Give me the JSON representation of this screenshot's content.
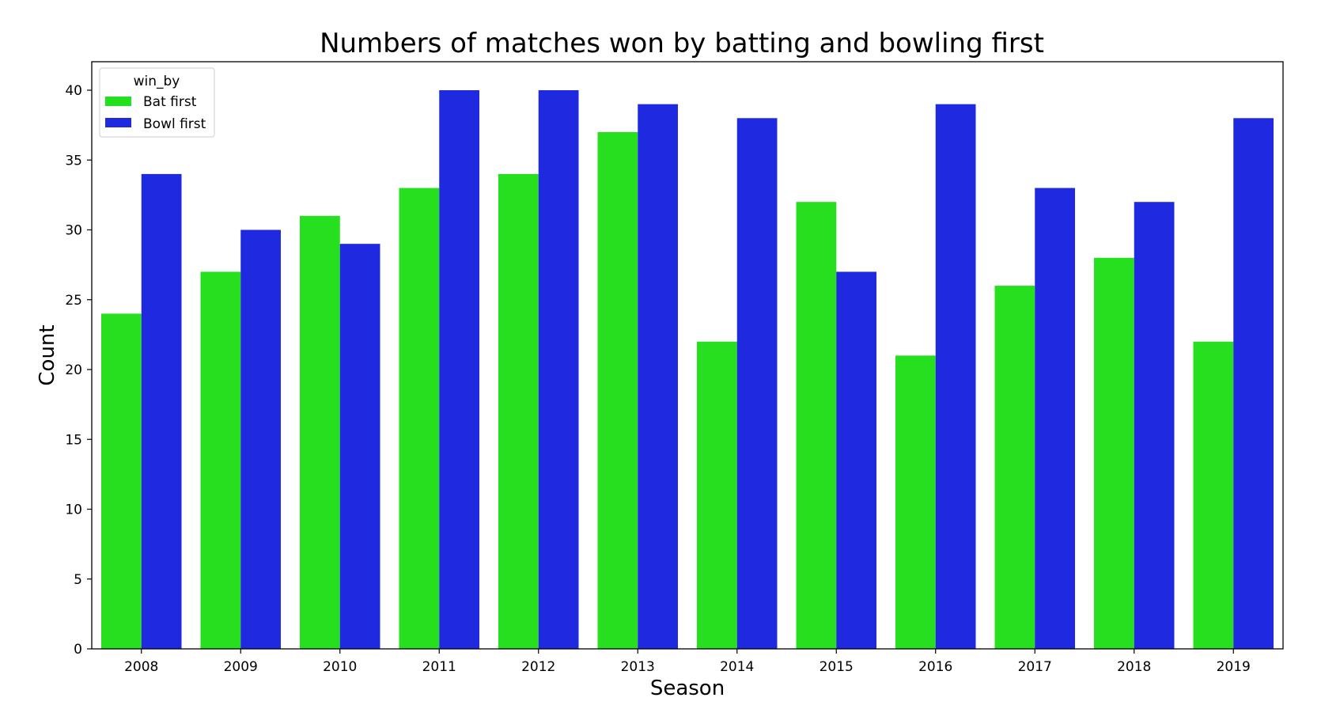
{
  "chart_data": {
    "type": "bar",
    "title": "Numbers of matches won by batting and bowling first",
    "xlabel": "Season",
    "ylabel": "Count",
    "categories": [
      "2008",
      "2009",
      "2010",
      "2011",
      "2012",
      "2013",
      "2014",
      "2015",
      "2016",
      "2017",
      "2018",
      "2019"
    ],
    "series": [
      {
        "name": "Bat first",
        "color": "#26e01f",
        "values": [
          24,
          27,
          31,
          33,
          34,
          37,
          22,
          32,
          21,
          26,
          28,
          22
        ]
      },
      {
        "name": "Bowl first",
        "color": "#1f2ae0",
        "values": [
          34,
          30,
          29,
          40,
          40,
          39,
          38,
          27,
          39,
          33,
          32,
          38
        ]
      }
    ],
    "ylim": [
      0,
      42
    ],
    "yticks": [
      0,
      5,
      10,
      15,
      20,
      25,
      30,
      35,
      40
    ],
    "legend": {
      "title": "win_by",
      "placement": "top-left"
    },
    "grid": false
  }
}
